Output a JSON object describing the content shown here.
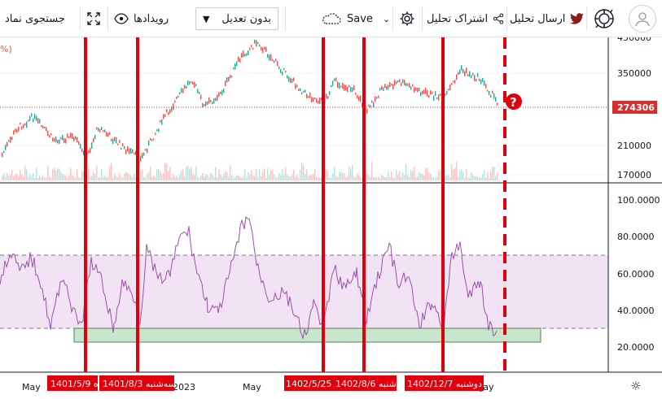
{
  "toolbar": {
    "search_label": "جستجوی نماد",
    "events_label": "رویدادها",
    "adjust_value": "بدون تعدیل",
    "save_label": "Save",
    "share_label": "اشتراک تحلیل",
    "send_label": "ارسال تحلیل"
  },
  "price_pane": {
    "corner_text": "%)",
    "price_ticks": [
      "450000",
      "350000",
      "210000",
      "170000"
    ],
    "current_price": "274306",
    "current_price_color": "#d32f2f",
    "question_marker": "?"
  },
  "indicator_pane": {
    "ticks": [
      "100.0000",
      "80.0000",
      "60.0000",
      "40.0000",
      "20.0000"
    ],
    "band_fill": "#f1e3f3",
    "band_upper": 70,
    "band_lower": 30,
    "line_color": "#9c4fb0"
  },
  "time_axis": {
    "labels": [
      "May",
      "2023",
      "May",
      "Jay"
    ],
    "date_tags": [
      {
        "text": "1401/5/9 ه"
      },
      {
        "text": "1401/8/3 سه‌شنبه"
      },
      {
        "text": "1402/5/25"
      },
      {
        "text": "1402/8/6 شنبه"
      },
      {
        "text": "1402/12/7 دوشنبه"
      }
    ]
  },
  "colors": {
    "accent_red": "#e0000b",
    "up_candle": "#26a69a",
    "down_candle": "#ef5350",
    "support_box": "#c8e6c9"
  }
}
